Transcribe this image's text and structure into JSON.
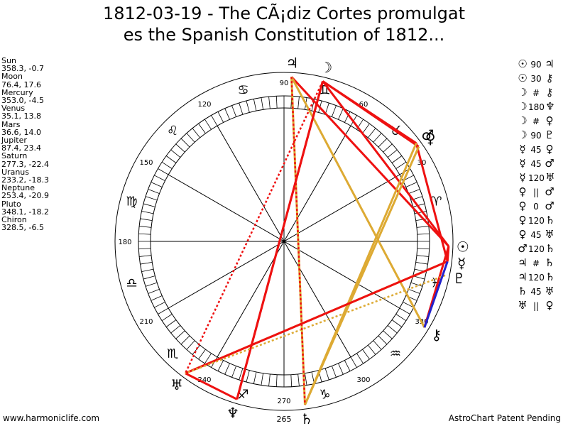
{
  "title": {
    "line1": "1812-03-19 - The CÃ¡diz Cortes promulgat",
    "line2": "es the Spanish Constitution of 1812..."
  },
  "planets": [
    {
      "name": "Sun",
      "coords": "358.3, -0.7",
      "glyph": "☉",
      "lon": 358.3
    },
    {
      "name": "Moon",
      "coords": "76.4, 17.6",
      "glyph": "☽",
      "lon": 76.4
    },
    {
      "name": "Mercury",
      "coords": "353.0, -4.5",
      "glyph": "☿",
      "lon": 353.0
    },
    {
      "name": "Venus",
      "coords": "35.1, 13.8",
      "glyph": "♀",
      "lon": 35.1
    },
    {
      "name": "Mars",
      "coords": "36.6, 14.0",
      "glyph": "♂",
      "lon": 36.6
    },
    {
      "name": "Jupiter",
      "coords": "87.4, 23.4",
      "glyph": "♃",
      "lon": 87.4
    },
    {
      "name": "Saturn",
      "coords": "277.3, -22.4",
      "glyph": "♄",
      "lon": 277.3
    },
    {
      "name": "Uranus",
      "coords": "233.2, -18.3",
      "glyph": "♅",
      "lon": 233.2
    },
    {
      "name": "Neptune",
      "coords": "253.4, -20.9",
      "glyph": "♆",
      "lon": 253.4
    },
    {
      "name": "Pluto",
      "coords": "348.1, -18.2",
      "glyph": "♇",
      "lon": 348.1
    },
    {
      "name": "Chiron",
      "coords": "328.5, -6.5",
      "glyph": "⚷",
      "lon": 328.5
    }
  ],
  "wheel_labels": [
    "30",
    "60",
    "90",
    "120",
    "150",
    "180",
    "210",
    "240",
    "270",
    "300",
    "330"
  ],
  "extra_label": "265",
  "zodiac_glyphs": [
    "♈",
    "♉",
    "♊",
    "♋",
    "♌",
    "♍",
    "♎",
    "♏",
    "♐",
    "♑",
    "♒",
    "♓"
  ],
  "aspects": [
    {
      "p1": "☉",
      "sym": "90",
      "p2": "♃"
    },
    {
      "p1": "☉",
      "sym": "30",
      "p2": "⚷"
    },
    {
      "p1": "☽",
      "sym": "#",
      "p2": "⚷"
    },
    {
      "p1": "☽",
      "sym": "180",
      "p2": "♆"
    },
    {
      "p1": "☽",
      "sym": "#",
      "p2": "♀"
    },
    {
      "p1": "☽",
      "sym": "90",
      "p2": "♇"
    },
    {
      "p1": "☿",
      "sym": "45",
      "p2": "♀"
    },
    {
      "p1": "☿",
      "sym": "45",
      "p2": "♂"
    },
    {
      "p1": "☿",
      "sym": "120",
      "p2": "♅"
    },
    {
      "p1": "♀",
      "sym": "||",
      "p2": "♂"
    },
    {
      "p1": "♀",
      "sym": "0",
      "p2": "♂"
    },
    {
      "p1": "♀",
      "sym": "120",
      "p2": "♄"
    },
    {
      "p1": "♀",
      "sym": "45",
      "p2": "♅"
    },
    {
      "p1": "♂",
      "sym": "120",
      "p2": "♄"
    },
    {
      "p1": "♃",
      "sym": "#",
      "p2": "♄"
    },
    {
      "p1": "♃",
      "sym": "120",
      "p2": "♄"
    },
    {
      "p1": "♄",
      "sym": "45",
      "p2": "♅"
    },
    {
      "p1": "♅",
      "sym": "||",
      "p2": "♀"
    }
  ],
  "chart_lines": [
    {
      "a": 358.3,
      "b": 87.4,
      "color": "#ee1111",
      "style": "solid"
    },
    {
      "a": 358.3,
      "b": 328.5,
      "color": "#ee1111",
      "style": "solid"
    },
    {
      "a": 353.0,
      "b": 233.2,
      "color": "#ddaa33",
      "style": "solid"
    },
    {
      "a": 35.1,
      "b": 76.4,
      "color": "#ee1111",
      "style": "solid"
    },
    {
      "a": 36.6,
      "b": 76.4,
      "color": "#ee1111",
      "style": "solid"
    },
    {
      "a": 76.4,
      "b": 253.4,
      "color": "#ee1111",
      "style": "solid"
    },
    {
      "a": 76.4,
      "b": 358.3,
      "color": "#ee1111",
      "style": "solid"
    },
    {
      "a": 353.0,
      "b": 36.6,
      "color": "#ee1111",
      "style": "solid"
    },
    {
      "a": 35.1,
      "b": 277.3,
      "color": "#ddaa33",
      "style": "solid"
    },
    {
      "a": 36.6,
      "b": 277.3,
      "color": "#ddaa33",
      "style": "solid"
    },
    {
      "a": 87.4,
      "b": 328.5,
      "color": "#ddaa33",
      "style": "solid"
    },
    {
      "a": 87.4,
      "b": 277.3,
      "color": "#ddaa33",
      "style": "solid"
    },
    {
      "a": 353.0,
      "b": 233.2,
      "color": "#ee1111",
      "style": "solid"
    },
    {
      "a": 233.2,
      "b": 253.4,
      "color": "#ee1111",
      "style": "solid"
    },
    {
      "a": 253.4,
      "b": 76.4,
      "color": "#ee1111",
      "style": "solid"
    },
    {
      "a": 348.1,
      "b": 233.2,
      "color": "#ddaa33",
      "style": "dotted"
    },
    {
      "a": 87.4,
      "b": 277.3,
      "color": "#ee1111",
      "style": "dotted"
    },
    {
      "a": 76.4,
      "b": 233.2,
      "color": "#ee1111",
      "style": "dotted"
    },
    {
      "a": 353.0,
      "b": 328.5,
      "color": "#2222cc",
      "style": "solid"
    },
    {
      "a": 358.3,
      "b": 353.0,
      "color": "#ee1111",
      "style": "solid"
    }
  ],
  "footer": {
    "left": "www.harmoniclife.com",
    "right": "AstroChart Patent Pending"
  }
}
